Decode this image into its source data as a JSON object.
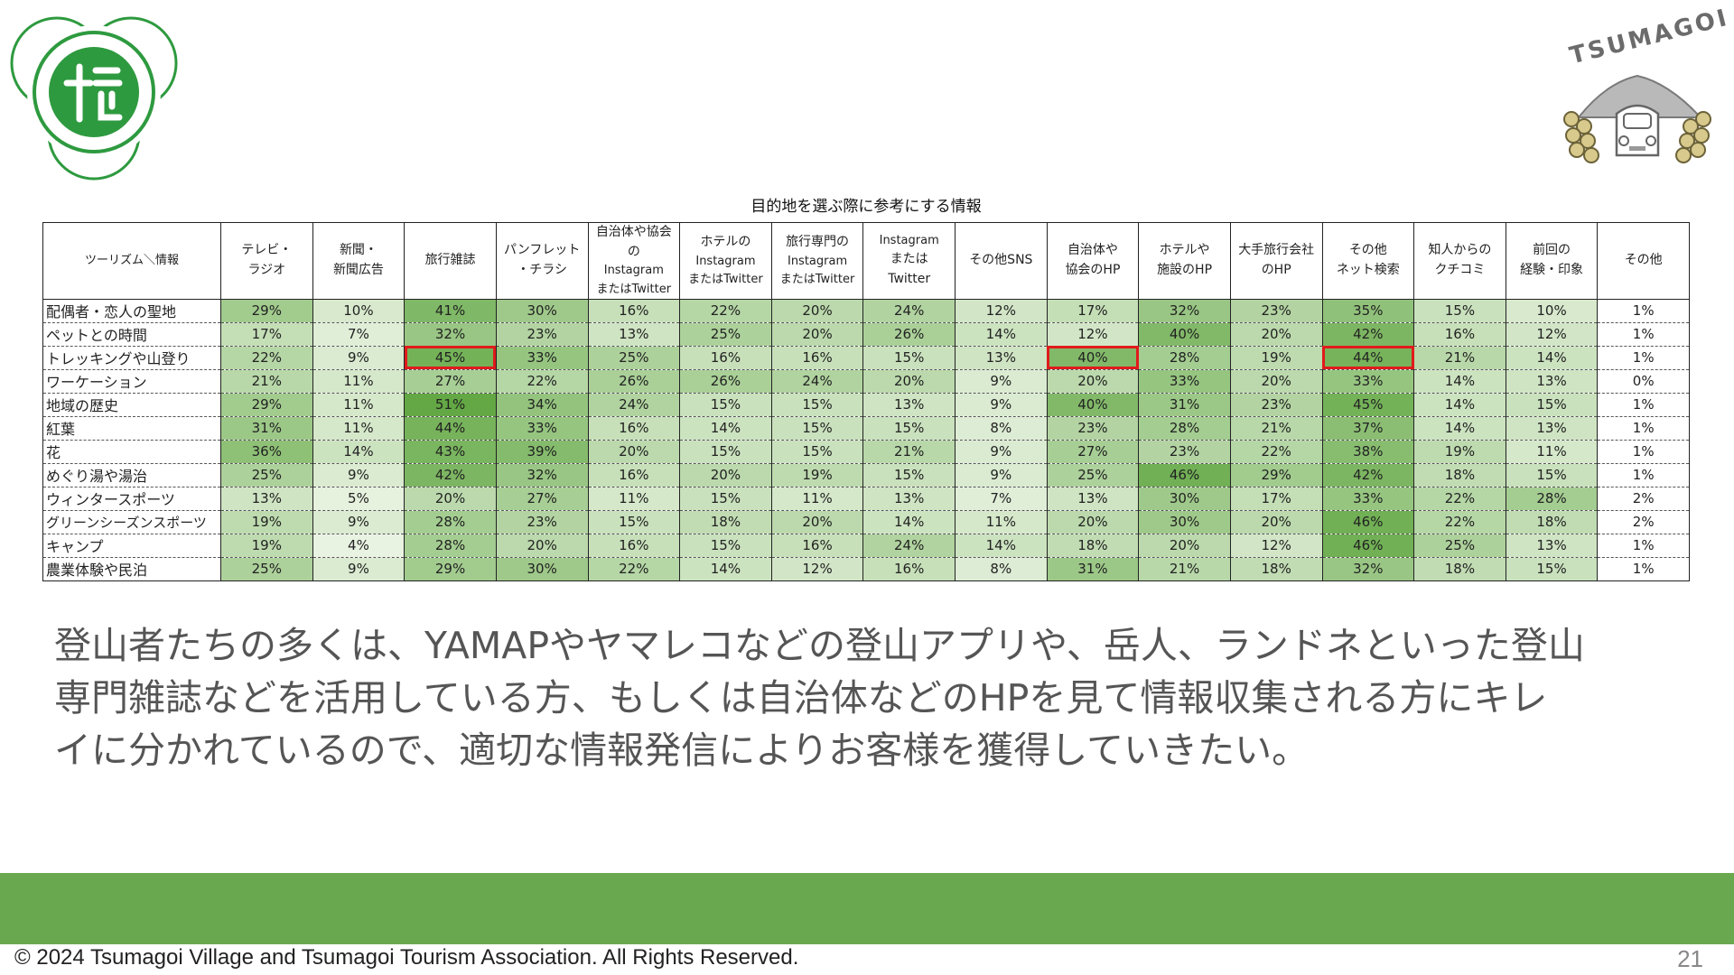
{
  "logo": {
    "right_text": "TSUMAGOI"
  },
  "table": {
    "title": "目的地を選ぶ際に参考にする情報",
    "headers": [
      [
        "ツーリズム＼情報"
      ],
      [
        "テレビ・",
        "ラジオ"
      ],
      [
        "新聞・",
        "新聞広告"
      ],
      [
        "旅行雑誌"
      ],
      [
        "パンフレット",
        "・チラシ"
      ],
      [
        "自治体や協会の",
        "Instagram",
        "またはTwitter"
      ],
      [
        "ホテルの",
        "Instagram",
        "またはTwitter"
      ],
      [
        "旅行専門の",
        "Instagram",
        "またはTwitter"
      ],
      [
        "Instagram",
        "または",
        "Twitter"
      ],
      [
        "その他SNS"
      ],
      [
        "自治体や",
        "協会のHP"
      ],
      [
        "ホテルや",
        "施設のHP"
      ],
      [
        "大手旅行会社",
        "のHP"
      ],
      [
        "その他",
        "ネット検索"
      ],
      [
        "知人からの",
        "クチコミ"
      ],
      [
        "前回の",
        "経験・印象"
      ],
      [
        "その他"
      ]
    ],
    "rows": [
      {
        "label": "配偶者・恋人の聖地",
        "values": [
          "29%",
          "10%",
          "41%",
          "30%",
          "16%",
          "22%",
          "20%",
          "24%",
          "12%",
          "17%",
          "32%",
          "23%",
          "35%",
          "15%",
          "10%",
          "1%"
        ]
      },
      {
        "label": "ペットとの時間",
        "values": [
          "17%",
          "7%",
          "32%",
          "23%",
          "13%",
          "25%",
          "20%",
          "26%",
          "14%",
          "12%",
          "40%",
          "20%",
          "42%",
          "16%",
          "12%",
          "1%"
        ]
      },
      {
        "label": "トレッキングや山登り",
        "values": [
          "22%",
          "9%",
          "45%",
          "33%",
          "25%",
          "16%",
          "16%",
          "15%",
          "13%",
          "40%",
          "28%",
          "19%",
          "44%",
          "21%",
          "14%",
          "1%"
        ]
      },
      {
        "label": "ワーケーション",
        "values": [
          "21%",
          "11%",
          "27%",
          "22%",
          "26%",
          "26%",
          "24%",
          "20%",
          "9%",
          "20%",
          "33%",
          "20%",
          "33%",
          "14%",
          "13%",
          "0%"
        ]
      },
      {
        "label": "地域の歴史",
        "values": [
          "29%",
          "11%",
          "51%",
          "34%",
          "24%",
          "15%",
          "15%",
          "13%",
          "9%",
          "40%",
          "31%",
          "23%",
          "45%",
          "14%",
          "15%",
          "1%"
        ]
      },
      {
        "label": "紅葉",
        "values": [
          "31%",
          "11%",
          "44%",
          "33%",
          "16%",
          "14%",
          "15%",
          "15%",
          "8%",
          "23%",
          "28%",
          "21%",
          "37%",
          "14%",
          "13%",
          "1%"
        ]
      },
      {
        "label": "花",
        "values": [
          "36%",
          "14%",
          "43%",
          "39%",
          "20%",
          "15%",
          "15%",
          "21%",
          "9%",
          "27%",
          "23%",
          "22%",
          "38%",
          "19%",
          "11%",
          "1%"
        ]
      },
      {
        "label": "めぐり湯や湯治",
        "values": [
          "25%",
          "9%",
          "42%",
          "32%",
          "16%",
          "20%",
          "19%",
          "15%",
          "9%",
          "25%",
          "46%",
          "29%",
          "42%",
          "18%",
          "15%",
          "1%"
        ]
      },
      {
        "label": "ウィンタースポーツ",
        "values": [
          "13%",
          "5%",
          "20%",
          "27%",
          "11%",
          "15%",
          "11%",
          "13%",
          "7%",
          "13%",
          "30%",
          "17%",
          "33%",
          "22%",
          "28%",
          "2%"
        ]
      },
      {
        "label": "グリーンシーズンスポーツ",
        "values": [
          "19%",
          "9%",
          "28%",
          "23%",
          "15%",
          "18%",
          "20%",
          "14%",
          "11%",
          "20%",
          "30%",
          "20%",
          "46%",
          "22%",
          "18%",
          "2%"
        ]
      },
      {
        "label": "キャンプ",
        "values": [
          "19%",
          "4%",
          "28%",
          "20%",
          "16%",
          "15%",
          "16%",
          "24%",
          "14%",
          "18%",
          "20%",
          "12%",
          "46%",
          "25%",
          "13%",
          "1%"
        ]
      },
      {
        "label": "農業体験や民泊",
        "values": [
          "25%",
          "9%",
          "29%",
          "30%",
          "22%",
          "14%",
          "12%",
          "16%",
          "8%",
          "31%",
          "21%",
          "18%",
          "32%",
          "18%",
          "15%",
          "1%"
        ]
      }
    ],
    "highlighted_row": "トレッキングや山登り",
    "highlighted_columns": [
      "旅行雑誌",
      "自治体や協会のHP",
      "その他ネット検索"
    ],
    "highlight_color": "#e01b1b"
  },
  "body": {
    "lines": [
      "登山者たちの多くは、YAMAPやヤマレコなどの登山アプリや、岳人、ランドネといった登山",
      "専門雑誌などを活用している方、もしくは自治体などのHPを見て情報収集される方にキレ",
      "イに分かれているので、適切な情報発信によりお客様を獲得していきたい。"
    ]
  },
  "footer": {
    "copyright": "© 2024 Tsumagoi Village and Tsumagoi Tourism Association. All Rights Reserved.",
    "page_number": "21"
  },
  "colors": {
    "band": "#6aa84f",
    "emblem": "#2e9a3f",
    "heat_low": "#f4f9ef",
    "heat_high": "#63a844"
  }
}
